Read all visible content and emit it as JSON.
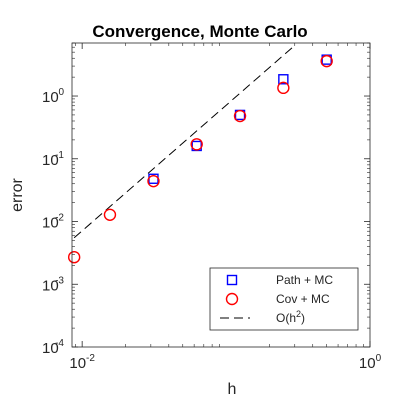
{
  "chart_data": {
    "type": "scatter",
    "title": "Convergence, Monte Carlo",
    "xlabel": "h",
    "ylabel": "error",
    "xscale": "log",
    "yscale": "log",
    "xlim": [
      0.0085,
      1.0
    ],
    "ylim": [
      0.0001,
      7.0
    ],
    "x_ticks": [
      {
        "base": "10",
        "exp": "-2",
        "value": 0.01
      },
      {
        "base": "10",
        "exp": "0",
        "value": 1
      }
    ],
    "y_ticks": [
      {
        "base": "10",
        "exp": "0",
        "value": 1
      },
      {
        "base": "10",
        "exp": "-1",
        "value": 0.1
      },
      {
        "base": "10",
        "exp": "-2",
        "value": 0.01
      },
      {
        "base": "10",
        "exp": "-3",
        "value": 0.001
      },
      {
        "base": "10",
        "exp": "-4",
        "value": 0.0001
      }
    ],
    "grid": false,
    "legend_position": "bottom-right",
    "series": [
      {
        "name": "Path + MC",
        "marker": "square",
        "color": "#0000ff",
        "x": [
          0.0313,
          0.0625,
          0.125,
          0.25,
          0.5
        ],
        "y": [
          0.048,
          0.16,
          0.5,
          1.85,
          3.8
        ]
      },
      {
        "name": "Cov + MC",
        "marker": "circle",
        "color": "#ff0000",
        "x": [
          0.0088,
          0.0156,
          0.0313,
          0.0625,
          0.125,
          0.25,
          0.5
        ],
        "y": [
          0.0027,
          0.0128,
          0.044,
          0.17,
          0.48,
          1.35,
          3.6
        ]
      },
      {
        "name": "O(h^2)",
        "legend_base": "O(h",
        "legend_sup": "2",
        "legend_end": ")",
        "marker": "none",
        "line": "dashed",
        "color": "#000000",
        "x": [
          0.0088,
          0.3
        ],
        "y": [
          0.0055,
          6.4
        ]
      }
    ]
  }
}
